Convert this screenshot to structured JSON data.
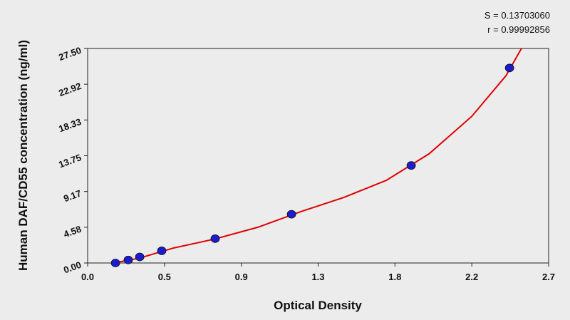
{
  "chart_data": {
    "type": "scatter",
    "annotations": [
      "S = 0.13703060",
      "r = 0.99992856"
    ],
    "xlabel": "Optical Density",
    "ylabel": "Human DAF/CD55 concentration (ng/ml)",
    "xlim": [
      0,
      2.7
    ],
    "ylim": [
      0,
      27.5
    ],
    "xticks": [
      {
        "value": 0,
        "label": "0.0"
      },
      {
        "value": 0.45,
        "label": "0.5"
      },
      0.9,
      {
        "value": 1.35,
        "label": "1.3"
      },
      1.8,
      {
        "value": 2.25,
        "label": "2.2"
      },
      2.7
    ],
    "yticks": [
      {
        "value": 0,
        "label": "0.00"
      },
      {
        "value": 4.5833,
        "label": "4.58"
      },
      {
        "value": 9.1667,
        "label": "9.17"
      },
      13.75,
      {
        "value": 18.3333,
        "label": "18.33"
      },
      {
        "value": 22.9167,
        "label": "22.92"
      },
      {
        "value": 27.5,
        "label": "27.50"
      }
    ],
    "series": [
      {
        "type": "scatter",
        "color": "#1c1ccf",
        "x": [
          0.163,
          0.238,
          0.305,
          0.434,
          0.747,
          1.194,
          1.895,
          2.471
        ],
        "values": [
          0,
          0.39,
          0.78,
          1.56,
          3.12,
          6.25,
          12.5,
          25
        ]
      },
      {
        "type": "line",
        "color": "#e00000",
        "x": [
          0.15,
          0.3,
          0.5,
          0.75,
          1.0,
          1.25,
          1.5,
          1.75,
          2.0,
          2.25,
          2.45,
          2.546
        ],
        "values": [
          0,
          0.6,
          1.9,
          3.1,
          4.6,
          6.6,
          8.4,
          10.6,
          14.0,
          18.8,
          24.0,
          27.7
        ]
      }
    ]
  }
}
